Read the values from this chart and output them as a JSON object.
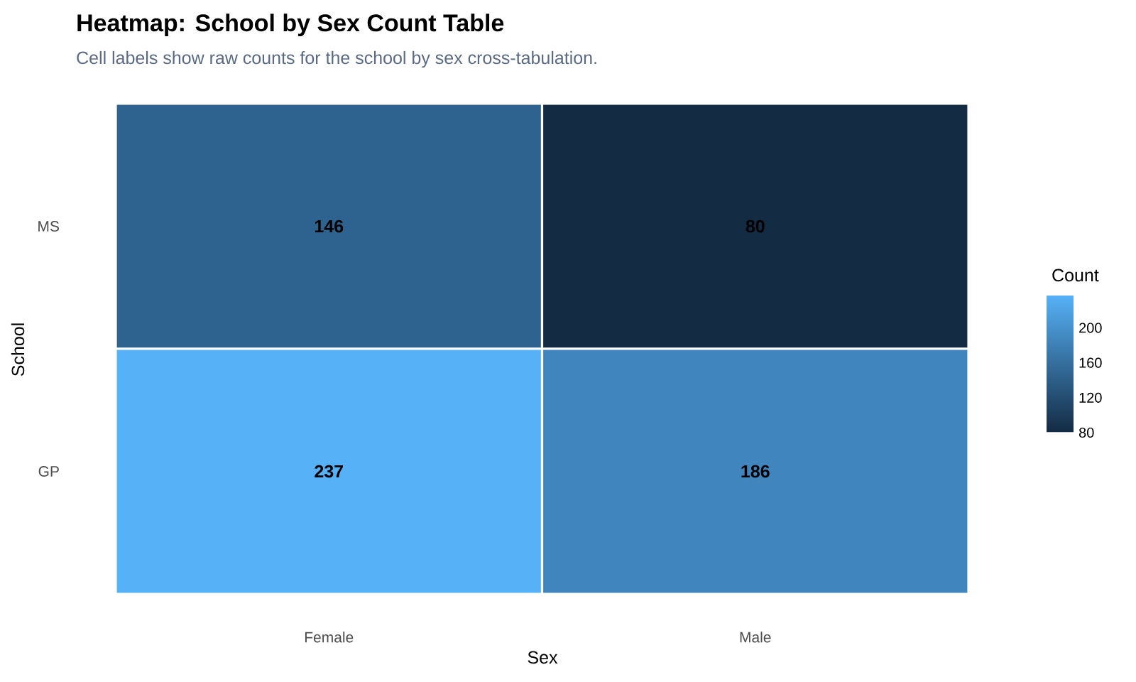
{
  "chart_data": {
    "type": "heatmap",
    "title": "Heatmap: School by Sex Count Table",
    "subtitle": "Cell labels show raw counts for the school by sex cross-tabulation.",
    "xlabel": "Sex",
    "ylabel": "School",
    "clabel": "Count",
    "categories": [
      "Female",
      "Male"
    ],
    "y_categories": [
      "MS",
      "GP"
    ],
    "cells": [
      [
        146,
        80
      ],
      [
        237,
        186
      ]
    ],
    "clim": [
      80,
      237
    ],
    "cticks": [
      80,
      120,
      160,
      200
    ],
    "data_labels": true
  }
}
